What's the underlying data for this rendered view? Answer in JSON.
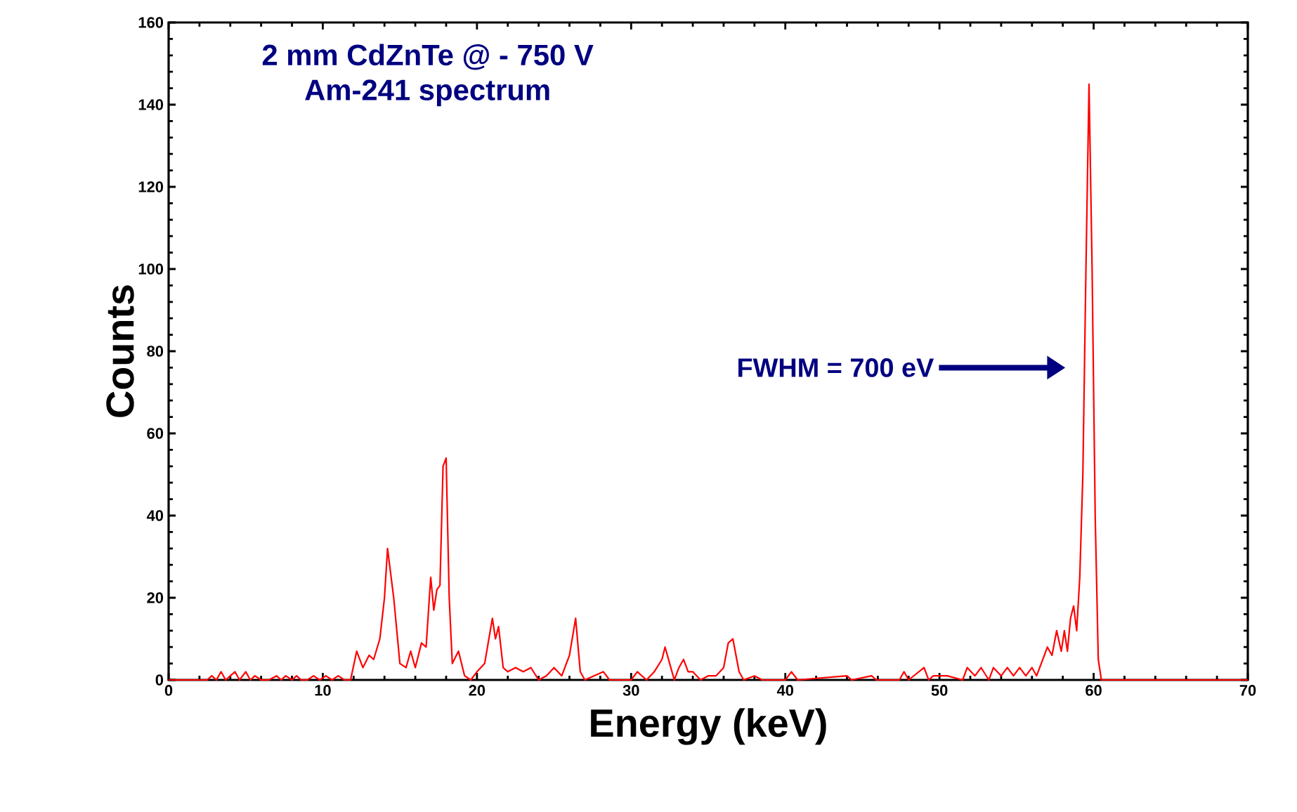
{
  "chart_data": {
    "type": "line",
    "title": "2 mm CdZnTe @ - 750 V",
    "subtitle": "Am-241 spectrum",
    "xlabel": "Energy (keV)",
    "ylabel": "Counts",
    "annotations": [
      "FWHM = 700 eV"
    ],
    "xlim": [
      0,
      70
    ],
    "ylim": [
      0,
      160
    ],
    "xticks": [
      0,
      10,
      20,
      30,
      40,
      50,
      60,
      70
    ],
    "yticks": [
      0,
      20,
      40,
      60,
      80,
      100,
      120,
      140,
      160
    ],
    "x": [
      0,
      2.5,
      2.8,
      3.1,
      3.4,
      3.7,
      4.0,
      4.3,
      4.6,
      5.0,
      5.3,
      5.6,
      6.0,
      6.5,
      7.0,
      7.3,
      7.6,
      8.0,
      8.3,
      8.6,
      9.0,
      9.4,
      9.8,
      10.2,
      10.6,
      11.0,
      11.4,
      11.8,
      12.2,
      12.6,
      13.0,
      13.3,
      13.7,
      14.0,
      14.2,
      14.6,
      15.0,
      15.4,
      15.7,
      16.0,
      16.4,
      16.7,
      17.0,
      17.2,
      17.4,
      17.6,
      17.8,
      18.0,
      18.2,
      18.4,
      18.8,
      19.2,
      19.6,
      20.0,
      20.5,
      21.0,
      21.2,
      21.4,
      21.7,
      22.0,
      22.5,
      23.0,
      23.5,
      24.0,
      24.5,
      25.0,
      25.5,
      26.0,
      26.4,
      26.7,
      27.0,
      27.6,
      28.2,
      28.6,
      29.0,
      30.0,
      30.4,
      31.0,
      31.5,
      32.0,
      32.2,
      32.5,
      32.8,
      33.1,
      33.4,
      33.7,
      34.0,
      34.5,
      35.0,
      35.5,
      36.0,
      36.3,
      36.6,
      37.0,
      37.3,
      38.0,
      38.5,
      40.0,
      40.4,
      40.8,
      44.0,
      44.3,
      45.6,
      45.9,
      47.4,
      47.7,
      48.0,
      49.0,
      49.3,
      49.6,
      50.5,
      51.5,
      51.8,
      52.3,
      52.7,
      53.2,
      53.5,
      54.0,
      54.4,
      54.8,
      55.2,
      55.6,
      56.0,
      56.3,
      56.7,
      57.0,
      57.3,
      57.6,
      57.9,
      58.1,
      58.3,
      58.5,
      58.7,
      58.9,
      59.1,
      59.3,
      59.5,
      59.7,
      59.9,
      60.1,
      60.3,
      60.5,
      70
    ],
    "series": [
      {
        "color": "#ff0000",
        "values": [
          0,
          0,
          1,
          0,
          2,
          0,
          1,
          2,
          0,
          2,
          0,
          1,
          0,
          0,
          1,
          0,
          1,
          0,
          1,
          0,
          0,
          1,
          0,
          1,
          0,
          1,
          0,
          0,
          7,
          3,
          6,
          5,
          10,
          20,
          32,
          20,
          4,
          3,
          7,
          3,
          9,
          8,
          25,
          17,
          22,
          23,
          52,
          54,
          20,
          4,
          7,
          1,
          0,
          2,
          4,
          15,
          10,
          13,
          3,
          2,
          3,
          2,
          3,
          0,
          1,
          3,
          1,
          6,
          15,
          2,
          0,
          1,
          2,
          0,
          0,
          0,
          2,
          0,
          2,
          5,
          8,
          4,
          0,
          3,
          5,
          2,
          2,
          0,
          1,
          1,
          3,
          9,
          10,
          2,
          0,
          1,
          0,
          0,
          2,
          0,
          1,
          0,
          1,
          0,
          0,
          2,
          0,
          3,
          0,
          1,
          1,
          0,
          3,
          1,
          3,
          0,
          3,
          1,
          3,
          1,
          3,
          1,
          3,
          1,
          5,
          8,
          6,
          12,
          7,
          12,
          7,
          15,
          18,
          12,
          25,
          50,
          100,
          145,
          100,
          40,
          5,
          0,
          0
        ]
      }
    ]
  }
}
